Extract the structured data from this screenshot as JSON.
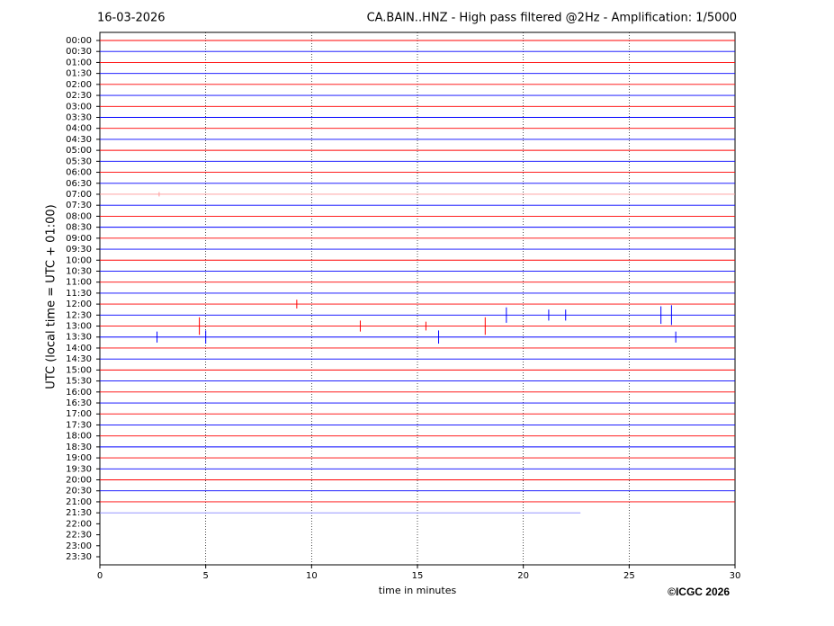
{
  "chart_data": {
    "type": "helicorder",
    "date": "16-03-2026",
    "title": "CA.BAIN..HNZ - High pass filtered @2Hz - Amplification: 1/5000",
    "y_label": "UTC (local time = UTC + 01:00)",
    "x_label": "time in minutes",
    "copyright": "©ICGC 2026",
    "xlim": [
      0,
      30
    ],
    "xticks": [
      0,
      5,
      10,
      15,
      20,
      25,
      30
    ],
    "grid": true,
    "categories": [
      "00:00",
      "00:30",
      "01:00",
      "01:30",
      "02:00",
      "02:30",
      "03:00",
      "03:30",
      "04:00",
      "04:30",
      "05:00",
      "05:30",
      "06:00",
      "06:30",
      "07:00",
      "07:30",
      "08:00",
      "08:30",
      "09:00",
      "09:30",
      "10:00",
      "10:30",
      "11:00",
      "11:30",
      "12:00",
      "12:30",
      "13:00",
      "13:30",
      "14:00",
      "14:30",
      "15:00",
      "15:30",
      "16:00",
      "16:30",
      "17:00",
      "17:30",
      "18:00",
      "18:30",
      "19:00",
      "19:30",
      "20:00",
      "20:30",
      "21:00",
      "21:30",
      "22:00",
      "22:30",
      "23:00",
      "23:30"
    ],
    "traces": [
      {
        "color": "#ff0000",
        "end": 30
      },
      {
        "color": "#0000ff",
        "end": 30
      },
      {
        "color": "#ff0000",
        "end": 30
      },
      {
        "color": "#0000ff",
        "end": 30
      },
      {
        "color": "#ff0000",
        "end": 30
      },
      {
        "color": "#0000ff",
        "end": 30
      },
      {
        "color": "#ff0000",
        "end": 30
      },
      {
        "color": "#0000ff",
        "end": 30
      },
      {
        "color": "#ff0000",
        "end": 30
      },
      {
        "color": "#0000ff",
        "end": 30
      },
      {
        "color": "#ff0000",
        "end": 30
      },
      {
        "color": "#0000ff",
        "end": 30
      },
      {
        "color": "#ff0000",
        "end": 30
      },
      {
        "color": "#0000ff",
        "end": 30
      },
      {
        "color": "#ff9999",
        "end": 30
      },
      {
        "color": "#0000ff",
        "end": 30
      },
      {
        "color": "#ff0000",
        "end": 30
      },
      {
        "color": "#0000ff",
        "end": 30
      },
      {
        "color": "#ff0000",
        "end": 30
      },
      {
        "color": "#0000ff",
        "end": 30
      },
      {
        "color": "#ff0000",
        "end": 30
      },
      {
        "color": "#0000ff",
        "end": 30
      },
      {
        "color": "#ff0000",
        "end": 30
      },
      {
        "color": "#0000ff",
        "end": 30
      },
      {
        "color": "#ff0000",
        "end": 30
      },
      {
        "color": "#0000ff",
        "end": 30
      },
      {
        "color": "#ff0000",
        "end": 30
      },
      {
        "color": "#0000ff",
        "end": 30
      },
      {
        "color": "#ff0000",
        "end": 30
      },
      {
        "color": "#0000ff",
        "end": 30
      },
      {
        "color": "#ff0000",
        "end": 30
      },
      {
        "color": "#0000ff",
        "end": 30
      },
      {
        "color": "#ff0000",
        "end": 30
      },
      {
        "color": "#0000ff",
        "end": 30
      },
      {
        "color": "#ff0000",
        "end": 30
      },
      {
        "color": "#0000ff",
        "end": 30
      },
      {
        "color": "#ff0000",
        "end": 30
      },
      {
        "color": "#0000ff",
        "end": 30
      },
      {
        "color": "#ff0000",
        "end": 30
      },
      {
        "color": "#0000ff",
        "end": 30
      },
      {
        "color": "#ff0000",
        "end": 30
      },
      {
        "color": "#0000ff",
        "end": 30
      },
      {
        "color": "#ff0000",
        "end": 30
      },
      {
        "color": "#8888ff",
        "end": 22.7
      }
    ],
    "events": [
      {
        "trace": 14,
        "x": 2.8,
        "amplitude": 0.2
      },
      {
        "trace": 24,
        "x": 9.3,
        "amplitude": 0.4
      },
      {
        "trace": 25,
        "x": 19.2,
        "amplitude": 0.7
      },
      {
        "trace": 25,
        "x": 21.2,
        "amplitude": 0.5
      },
      {
        "trace": 25,
        "x": 22.0,
        "amplitude": 0.5
      },
      {
        "trace": 25,
        "x": 26.5,
        "amplitude": 0.8
      },
      {
        "trace": 25,
        "x": 27.0,
        "amplitude": 0.9
      },
      {
        "trace": 26,
        "x": 4.7,
        "amplitude": 0.8
      },
      {
        "trace": 26,
        "x": 12.3,
        "amplitude": 0.5
      },
      {
        "trace": 26,
        "x": 15.4,
        "amplitude": 0.4
      },
      {
        "trace": 26,
        "x": 18.2,
        "amplitude": 0.8
      },
      {
        "trace": 27,
        "x": 2.7,
        "amplitude": 0.5
      },
      {
        "trace": 27,
        "x": 5.0,
        "amplitude": 0.6
      },
      {
        "trace": 27,
        "x": 16.0,
        "amplitude": 0.6
      },
      {
        "trace": 27,
        "x": 27.2,
        "amplitude": 0.5
      }
    ]
  }
}
